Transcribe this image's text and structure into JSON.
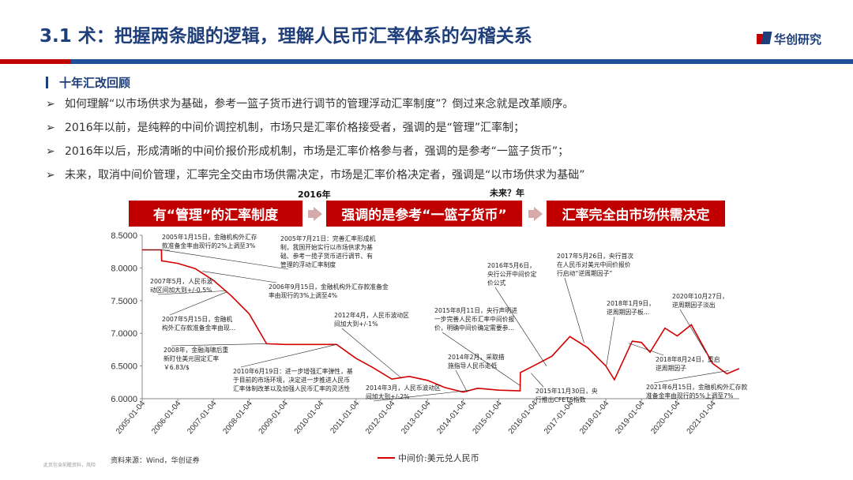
{
  "header": {
    "title": "3.1 术：把握两条腿的逻辑，理解人民币汇率体系的勾稽关系",
    "logo_text": "华创研究",
    "brand_blue": "#1f3f7a",
    "brand_red": "#c00000"
  },
  "section": {
    "title": "十年汇改回顾",
    "bullets": [
      "如何理解“以市场供求为基础，参考一篮子货币进行调节的管理浮动汇率制度”？倒过来念就是改革顺序。",
      "2016年以前，是纯粹的中间价调控机制，市场只是汇率价格接受者，强调的是“管理”汇率制；",
      "2016年以后，形成清晰的中间价报价形成机制，市场是汇率价格参与者，强调的是参考“一篮子货币”；",
      "未来，取消中间价管理，汇率完全交由市场供需决定，市场是汇率价格决定者，强调是“以市场供求为基础”"
    ],
    "bullet_icon": "arrow-right-icon"
  },
  "timeline": {
    "year_2016": "2016年",
    "year_future": "未来？年",
    "stages": [
      "有“管理”的汇率制度",
      "强调的是参考“一篮子货币”",
      "汇率完全由市场供需决定"
    ]
  },
  "chart_data": {
    "type": "line",
    "title": "",
    "xlabel": "",
    "ylabel": "",
    "ylim": [
      6.0,
      8.5
    ],
    "yticks": [
      "6.0000",
      "6.5000",
      "7.0000",
      "7.5000",
      "8.0000",
      "8.5000"
    ],
    "xticks": [
      "2005-01-04",
      "2006-01-04",
      "2007-01-04",
      "2008-01-04",
      "2009-01-04",
      "2010-01-04",
      "2011-01-04",
      "2012-01-04",
      "2013-01-04",
      "2014-01-04",
      "2015-01-04",
      "2016-01-04",
      "2017-01-04",
      "2018-01-04",
      "2019-01-04",
      "2020-01-04",
      "2021-01-04"
    ],
    "legend": "中间价:美元兑人民币",
    "legend_position": "bottom",
    "grid": false,
    "line_color": "#d40000",
    "series": [
      {
        "name": "中间价:美元兑人民币",
        "points": [
          [
            "2005-01-04",
            8.277
          ],
          [
            "2005-07-20",
            8.277
          ],
          [
            "2005-07-22",
            8.11
          ],
          [
            "2006-01-04",
            8.07
          ],
          [
            "2006-07-01",
            7.99
          ],
          [
            "2007-01-04",
            7.81
          ],
          [
            "2007-07-01",
            7.58
          ],
          [
            "2008-01-04",
            7.3
          ],
          [
            "2008-07-01",
            6.84
          ],
          [
            "2009-01-04",
            6.83
          ],
          [
            "2010-06-18",
            6.83
          ],
          [
            "2010-12-31",
            6.62
          ],
          [
            "2011-07-01",
            6.47
          ],
          [
            "2012-01-04",
            6.3
          ],
          [
            "2012-07-01",
            6.34
          ],
          [
            "2013-01-04",
            6.28
          ],
          [
            "2013-07-01",
            6.17
          ],
          [
            "2014-01-04",
            6.1
          ],
          [
            "2014-06-01",
            6.16
          ],
          [
            "2015-01-04",
            6.13
          ],
          [
            "2015-08-10",
            6.12
          ],
          [
            "2015-08-13",
            6.4
          ],
          [
            "2016-01-04",
            6.51
          ],
          [
            "2016-07-01",
            6.65
          ],
          [
            "2016-12-31",
            6.95
          ],
          [
            "2017-07-01",
            6.78
          ],
          [
            "2018-01-04",
            6.5
          ],
          [
            "2018-04-01",
            6.29
          ],
          [
            "2018-10-01",
            6.88
          ],
          [
            "2019-01-04",
            6.86
          ],
          [
            "2019-04-01",
            6.71
          ],
          [
            "2019-09-01",
            7.08
          ],
          [
            "2020-01-04",
            6.96
          ],
          [
            "2020-05-28",
            7.13
          ],
          [
            "2020-12-31",
            6.54
          ],
          [
            "2021-05-28",
            6.38
          ],
          [
            "2021-09-30",
            6.46
          ]
        ]
      }
    ],
    "annotations": [
      {
        "date": "2005-07-21",
        "value": 8.277,
        "text": [
          "2005年7月21日：完善汇率形成机",
          "制，我国开始实行以市场供求为基",
          "础、参考一揽子货币进行调节、有",
          "管理的浮动汇率制度"
        ]
      },
      {
        "date": "2005-01-15",
        "value": 8.277,
        "text": [
          "2005年1月15日，金融机构外汇存",
          "款准备金率由现行的2%上调至3%"
        ]
      },
      {
        "date": "2007-05-18",
        "value": 7.65,
        "text": [
          "2007年5月，人民币波",
          "动区间加大到+/-0.5%"
        ]
      },
      {
        "date": "2006-09-15",
        "value": 7.95,
        "text": [
          "2006年9月15日，金融机构外汇存款准备金",
          "率由现行的3%上调至4%"
        ]
      },
      {
        "date": "2007-05-15",
        "value": 7.63,
        "text": [
          "2007年5月15日，金融机",
          "构外汇存款准备金率由现..."
        ]
      },
      {
        "date": "2008-07-01",
        "value": 6.84,
        "text": [
          "2008年，金融海啸后重",
          "新盯住美元固定汇率",
          "￥6.83/$"
        ]
      },
      {
        "date": "2010-06-19",
        "value": 6.83,
        "text": [
          "2010年6月19日：进一步增强汇率弹性，基",
          "于目前的市场环境，决定进一步推进人民币",
          "汇率体制改革以及加强人民币汇率的灵活性"
        ]
      },
      {
        "date": "2012-04-16",
        "value": 6.31,
        "text": [
          "2012年4月，人民币波动区",
          "间加大到+/-1%"
        ]
      },
      {
        "date": "2015-08-11",
        "value": 6.2,
        "text": [
          "2015年8月11日，央行声明进",
          "一步完善人民币汇率中间价报",
          "价，明确中间价确定需要参..."
        ]
      },
      {
        "date": "2014-02-15",
        "value": 6.1,
        "text": [
          "2014年2月，采取措",
          "施指导人民币走低"
        ]
      },
      {
        "date": "2014-03-15",
        "value": 6.13,
        "text": [
          "2014年3月，人民币波动区",
          "间加大到+/-2%"
        ]
      },
      {
        "date": "2016-05-06",
        "value": 6.5,
        "text": [
          "2016年5月6日，",
          "央行公开中间价定",
          "价公式"
        ]
      },
      {
        "date": "2015-11-30",
        "value": 6.39,
        "text": [
          "2015年11月30日，央",
          "行推出CFETS指数"
        ]
      },
      {
        "date": "2017-05-26",
        "value": 6.85,
        "text": [
          "2017年5月26日，央行首次",
          "在人民币对美元中间价报价",
          "行启动“逆周期因子”"
        ]
      },
      {
        "date": "2018-01-09",
        "value": 6.5,
        "text": [
          "2018年1月9日，",
          "逆周期因子板..."
        ]
      },
      {
        "date": "2018-08-24",
        "value": 6.85,
        "text": [
          "2018年8月24日，重启",
          "逆周期因子"
        ]
      },
      {
        "date": "2020-10-27",
        "value": 6.7,
        "text": [
          "2020年10月27日，",
          "逆周期因子淡出"
        ]
      },
      {
        "date": "2021-06-15",
        "value": 6.43,
        "text": [
          "2021年6月15日，金融机构外汇存款",
          "准备金率由现行的5%上调至7%"
        ]
      }
    ]
  },
  "footer": {
    "source": "资料来源：Wind，华创证券",
    "disclaimer": "此页包含前瞻资料，风险"
  }
}
